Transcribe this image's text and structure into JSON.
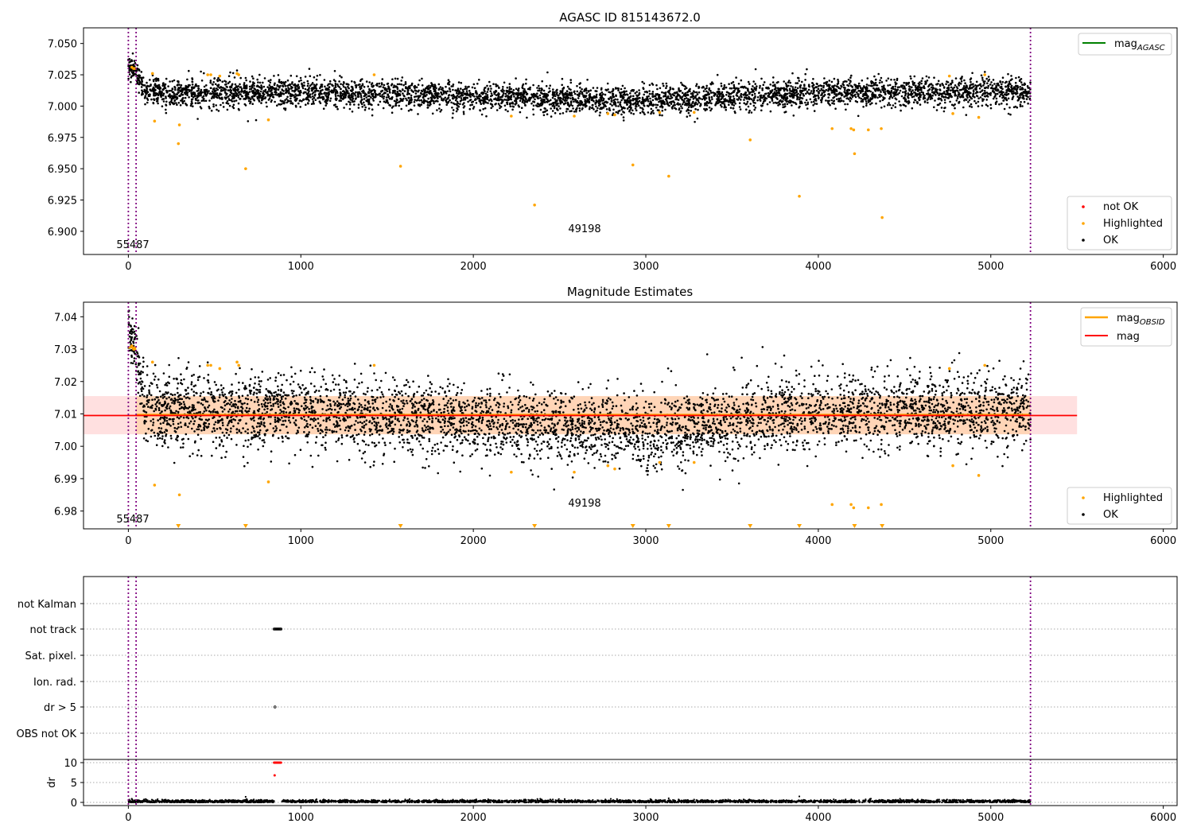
{
  "chart_data": [
    {
      "type": "scatter",
      "title": "AGASC ID 815143672.0",
      "xlabel": "",
      "ylabel": "",
      "xlim": [
        -260,
        6080
      ],
      "ylim": [
        6.8815,
        7.0625
      ],
      "xticks": [
        0,
        1000,
        2000,
        3000,
        4000,
        5000,
        6000
      ],
      "xtick_labels": [
        "0",
        "1000",
        "2000",
        "3000",
        "4000",
        "5000",
        "6000"
      ],
      "yticks": [
        6.9,
        6.925,
        6.95,
        6.975,
        7.0,
        7.025,
        7.05
      ],
      "ytick_labels": [
        "6.900",
        "6.925",
        "6.950",
        "6.975",
        "7.000",
        "7.025",
        "7.050"
      ],
      "vlines": [
        0,
        45,
        5230
      ],
      "annotations": [
        {
          "text": "55487",
          "x": 22,
          "y": 6.888
        },
        {
          "text": "49198",
          "x": 2640,
          "y": 6.902
        }
      ],
      "legend_lines": [
        {
          "label": "mag",
          "sub": "AGASC",
          "color": "#008000",
          "position": "top-right"
        }
      ],
      "legend_points": [
        {
          "label": "not OK",
          "color": "#ff0000"
        },
        {
          "label": "Highlighted",
          "color": "#ffa500"
        },
        {
          "label": "OK",
          "color": "#000000"
        }
      ],
      "legend_points_position": "bottom-right",
      "ok_segments": [
        {
          "x": [
            0,
            45
          ],
          "center": [
            7.033,
            7.028
          ],
          "spread": 0.004,
          "n": 60
        },
        {
          "x": [
            45,
            90
          ],
          "center": [
            7.026,
            7.016
          ],
          "spread": 0.005,
          "n": 45
        },
        {
          "x": [
            90,
            1000
          ],
          "center": [
            7.011,
            7.011
          ],
          "spread": 0.0055,
          "n": 900
        },
        {
          "x": [
            1000,
            2000
          ],
          "center": [
            7.011,
            7.008
          ],
          "spread": 0.0055,
          "n": 900
        },
        {
          "x": [
            2000,
            3000
          ],
          "center": [
            7.008,
            7.004
          ],
          "spread": 0.0055,
          "n": 900
        },
        {
          "x": [
            3000,
            4000
          ],
          "center": [
            7.004,
            7.011
          ],
          "spread": 0.0058,
          "n": 900
        },
        {
          "x": [
            4000,
            5230
          ],
          "center": [
            7.011,
            7.011
          ],
          "spread": 0.0055,
          "n": 1100
        }
      ],
      "highlighted": [
        [
          20,
          7.031
        ],
        [
          30,
          7.03
        ],
        [
          38,
          7.03
        ],
        [
          140,
          7.026
        ],
        [
          152,
          6.988
        ],
        [
          290,
          6.97
        ],
        [
          296,
          6.985
        ],
        [
          460,
          7.025
        ],
        [
          478,
          7.025
        ],
        [
          530,
          7.024
        ],
        [
          630,
          7.026
        ],
        [
          640,
          7.025
        ],
        [
          680,
          6.95
        ],
        [
          812,
          6.989
        ],
        [
          1425,
          7.025
        ],
        [
          1578,
          6.952
        ],
        [
          2220,
          6.992
        ],
        [
          2355,
          6.921
        ],
        [
          2585,
          6.992
        ],
        [
          2780,
          6.994
        ],
        [
          2820,
          6.993
        ],
        [
          2925,
          6.953
        ],
        [
          3080,
          6.995
        ],
        [
          3133,
          6.944
        ],
        [
          3280,
          6.995
        ],
        [
          3605,
          6.973
        ],
        [
          3890,
          6.928
        ],
        [
          4080,
          6.982
        ],
        [
          4190,
          6.982
        ],
        [
          4205,
          6.981
        ],
        [
          4210,
          6.962
        ],
        [
          4290,
          6.981
        ],
        [
          4365,
          6.982
        ],
        [
          4370,
          6.911
        ],
        [
          4760,
          7.024
        ],
        [
          4780,
          6.994
        ],
        [
          4930,
          6.991
        ],
        [
          4965,
          7.025
        ]
      ]
    },
    {
      "type": "scatter",
      "title": "Magnitude Estimates",
      "xlabel": "",
      "ylabel": "",
      "xlim": [
        -260,
        6080
      ],
      "ylim": [
        6.9745,
        7.0445
      ],
      "xticks": [
        0,
        1000,
        2000,
        3000,
        4000,
        5000,
        6000
      ],
      "xtick_labels": [
        "0",
        "1000",
        "2000",
        "3000",
        "4000",
        "5000",
        "6000"
      ],
      "yticks": [
        6.98,
        6.99,
        7.0,
        7.01,
        7.02,
        7.03,
        7.04
      ],
      "ytick_labels": [
        "6.98",
        "6.99",
        "7.00",
        "7.01",
        "7.02",
        "7.03",
        "7.04"
      ],
      "vlines": [
        0,
        45,
        5230
      ],
      "mag_line": {
        "value": 7.0095,
        "x": [
          -260,
          5500
        ],
        "color": "#ff0000"
      },
      "mag_band": {
        "low": 7.0037,
        "high": 7.0155,
        "x": [
          -260,
          5500
        ],
        "color": "#ffcccc"
      },
      "obsid_band": {
        "low": 7.0037,
        "high": 7.0155,
        "x": [
          45,
          5230
        ],
        "color": "#ffa500"
      },
      "obsid_segments": [
        {
          "x": [
            0,
            45
          ],
          "value": 7.0305
        },
        {
          "x": [
            45,
            5230
          ],
          "value": 7.0097
        }
      ],
      "annotations": [
        {
          "text": "55487",
          "x": 22,
          "y": 6.9765
        },
        {
          "text": "49198",
          "x": 2640,
          "y": 6.9815
        }
      ],
      "legend_lines": [
        {
          "label": "mag",
          "sub": "OBSID",
          "color": "#ffa500"
        },
        {
          "label": "mag",
          "sub": "",
          "color": "#ff0000"
        }
      ],
      "legend_lines_position": "top-right",
      "legend_points": [
        {
          "label": "Highlighted",
          "color": "#ffa500"
        },
        {
          "label": "OK",
          "color": "#000000"
        }
      ],
      "legend_points_position": "bottom-right",
      "out_of_range_markers_x": [
        290,
        680,
        1578,
        2355,
        2925,
        3133,
        3605,
        3890,
        4210,
        4370
      ]
    },
    {
      "type": "scatter",
      "title": "",
      "xlabel": "",
      "ylabel": "",
      "xlim": [
        -260,
        6080
      ],
      "categories": [
        "not Kalman",
        "not track",
        "Sat. pixel.",
        "Ion. rad.",
        "dr > 5",
        "OBS not OK"
      ],
      "vlines": [
        0,
        45,
        5230
      ],
      "grid": "horizontal dotted",
      "flag_points": {
        "not track": {
          "x": [
            845,
            850,
            855,
            860,
            865,
            870,
            875,
            880,
            885
          ],
          "color": "#000000"
        },
        "dr > 5": {
          "x": [
            850
          ],
          "color": "#000000"
        }
      }
    },
    {
      "type": "scatter",
      "title": "",
      "xlabel": "",
      "ylabel": "dr",
      "xlim": [
        -260,
        6080
      ],
      "ylim": [
        -0.8,
        10.8
      ],
      "xticks": [
        0,
        1000,
        2000,
        3000,
        4000,
        5000,
        6000
      ],
      "xtick_labels": [
        "0",
        "1000",
        "2000",
        "3000",
        "4000",
        "5000",
        "6000"
      ],
      "yticks": [
        0,
        5,
        10
      ],
      "ytick_labels": [
        "0",
        "5",
        "10"
      ],
      "vlines": [
        0,
        45,
        5230
      ],
      "baseline_segments": [
        {
          "x": [
            0,
            845
          ],
          "center": 0.25,
          "spread": 0.2,
          "n": 700
        },
        {
          "x": [
            890,
            5230
          ],
          "center": 0.25,
          "spread": 0.2,
          "n": 2900
        }
      ],
      "outliers": [
        [
          680,
          1.4
        ],
        [
          3890,
          1.5
        ],
        [
          20,
          0.9
        ]
      ],
      "red_points": [
        [
          845,
          10
        ],
        [
          850,
          10
        ],
        [
          855,
          10
        ],
        [
          860,
          10
        ],
        [
          865,
          10
        ],
        [
          870,
          10
        ],
        [
          875,
          10
        ],
        [
          880,
          10
        ],
        [
          885,
          10
        ],
        [
          848,
          6.8
        ]
      ]
    }
  ]
}
